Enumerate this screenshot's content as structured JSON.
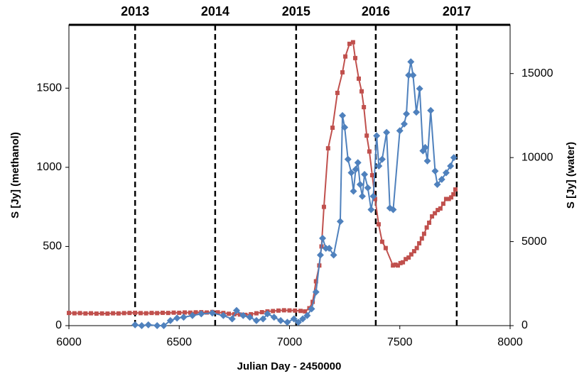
{
  "chart_data": {
    "type": "line",
    "x_label": "Julian Day - 2450000",
    "y_label": "S [Jy] (methanol)",
    "y2_label": "S [Jy] (water)",
    "xlim": [
      6000,
      8000
    ],
    "xticks": [
      6000,
      6500,
      7000,
      7500,
      8000
    ],
    "ylim": [
      0,
      1900
    ],
    "yticks": [
      0,
      500,
      1000,
      1500
    ],
    "y2lim": [
      0,
      17900
    ],
    "y2ticks": [
      0,
      5000,
      10000,
      15000
    ],
    "grid": false,
    "annotations": [
      {
        "label": "2013",
        "x": 6300
      },
      {
        "label": "2014",
        "x": 6663
      },
      {
        "label": "2015",
        "x": 7030
      },
      {
        "label": "2016",
        "x": 7391
      },
      {
        "label": "2017",
        "x": 7758
      }
    ],
    "series": [
      {
        "color": "#c0504d",
        "marker": "square",
        "axis": "y",
        "x": [
          6000,
          6025,
          6050,
          6075,
          6100,
          6125,
          6150,
          6175,
          6200,
          6225,
          6250,
          6275,
          6300,
          6325,
          6350,
          6375,
          6400,
          6425,
          6450,
          6475,
          6500,
          6525,
          6550,
          6575,
          6600,
          6625,
          6650,
          6675,
          6700,
          6725,
          6750,
          6775,
          6800,
          6825,
          6850,
          6875,
          6900,
          6925,
          6950,
          6975,
          7000,
          7025,
          7050,
          7070,
          7090,
          7105,
          7120,
          7135,
          7145,
          7156,
          7175,
          7195,
          7217,
          7240,
          7253,
          7272,
          7288,
          7298,
          7314,
          7327,
          7337,
          7350,
          7362,
          7375,
          7388,
          7404,
          7420,
          7436,
          7469,
          7480,
          7491,
          7503,
          7514,
          7527,
          7540,
          7552,
          7565,
          7577,
          7588,
          7600,
          7610,
          7622,
          7633,
          7646,
          7659,
          7672,
          7684,
          7697,
          7710,
          7722,
          7733,
          7743,
          7752
        ],
        "values": [
          80,
          78,
          79,
          77,
          78,
          76,
          77,
          76,
          78,
          77,
          79,
          80,
          81,
          79,
          78,
          80,
          79,
          81,
          80,
          82,
          81,
          83,
          82,
          84,
          85,
          83,
          86,
          84,
          80,
          75,
          72,
          70,
          68,
          72,
          78,
          85,
          90,
          92,
          95,
          97,
          96,
          95,
          93,
          90,
          110,
          150,
          280,
          380,
          500,
          750,
          1120,
          1250,
          1470,
          1600,
          1700,
          1780,
          1790,
          1690,
          1560,
          1480,
          1380,
          1200,
          1100,
          950,
          800,
          640,
          530,
          490,
          380,
          385,
          380,
          395,
          400,
          420,
          430,
          450,
          470,
          490,
          520,
          550,
          580,
          620,
          650,
          690,
          710,
          730,
          740,
          770,
          800,
          800,
          810,
          830,
          860
        ]
      },
      {
        "color": "#4f81bd",
        "marker": "diamond",
        "axis": "y2",
        "x": [
          6300,
          6330,
          6360,
          6400,
          6430,
          6460,
          6490,
          6520,
          6560,
          6600,
          6650,
          6700,
          6740,
          6760,
          6790,
          6820,
          6850,
          6880,
          6900,
          6930,
          6960,
          6990,
          7020,
          7040,
          7060,
          7080,
          7100,
          7120,
          7140,
          7150,
          7165,
          7180,
          7200,
          7230,
          7240,
          7250,
          7265,
          7280,
          7290,
          7300,
          7310,
          7320,
          7330,
          7340,
          7355,
          7370,
          7380,
          7395,
          7405,
          7420,
          7440,
          7455,
          7470,
          7500,
          7520,
          7530,
          7540,
          7550,
          7560,
          7575,
          7590,
          7605,
          7615,
          7625,
          7640,
          7660,
          7670,
          7690,
          7710,
          7730,
          7745
        ],
        "values": [
          50,
          0,
          50,
          0,
          0,
          300,
          450,
          500,
          600,
          700,
          750,
          600,
          400,
          900,
          600,
          500,
          300,
          400,
          700,
          500,
          300,
          200,
          400,
          200,
          400,
          600,
          1000,
          2000,
          4200,
          5200,
          4600,
          4600,
          4200,
          6200,
          12500,
          11800,
          9900,
          9100,
          8000,
          9300,
          9700,
          8400,
          7700,
          9000,
          8200,
          6900,
          7700,
          11300,
          9500,
          9900,
          11500,
          7000,
          6900,
          11600,
          12000,
          12600,
          14900,
          15700,
          14900,
          12700,
          14100,
          10400,
          10600,
          9800,
          12800,
          9200,
          8400,
          8700,
          9100,
          9500,
          10000
        ]
      }
    ]
  }
}
